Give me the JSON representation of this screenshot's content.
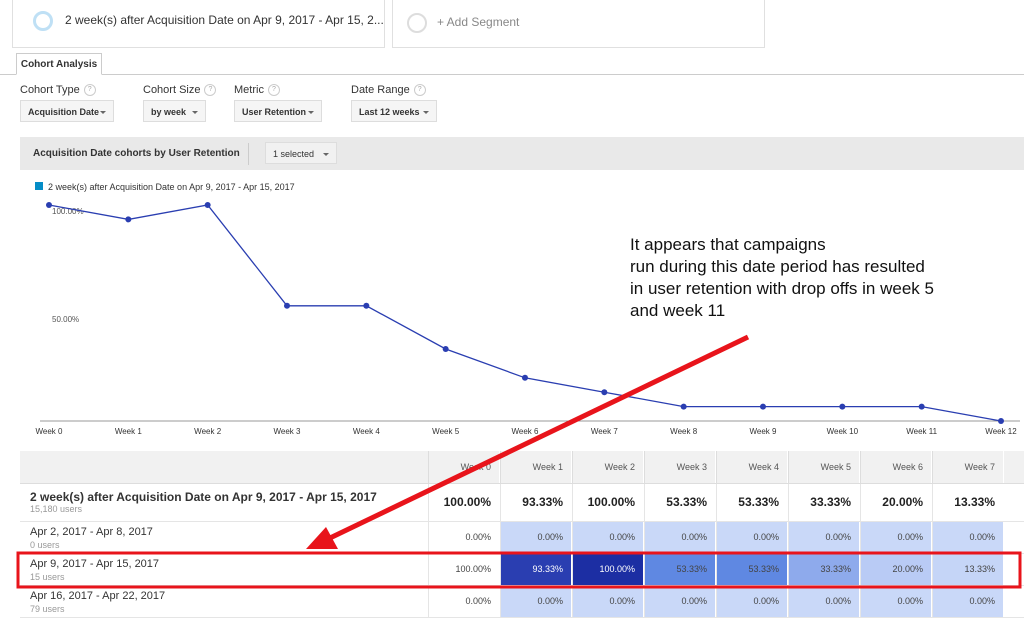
{
  "segments": {
    "active": "2 week(s) after Acquisition Date on Apr 9, 2017 - Apr 15, 2...",
    "add": "+ Add Segment"
  },
  "tab": "Cohort Analysis",
  "controls": [
    {
      "label": "Cohort Type",
      "value": "Acquisition Date"
    },
    {
      "label": "Cohort Size",
      "value": "by week"
    },
    {
      "label": "Metric",
      "value": "User Retention"
    },
    {
      "label": "Date Range",
      "value": "Last 12 weeks"
    }
  ],
  "chart_header": {
    "title": "Acquisition Date cohorts by User Retention",
    "selector": "1 selected"
  },
  "chart": {
    "type": "line",
    "series_name": "2 week(s) after Acquisition Date on Apr 9, 2017 - Apr 15, 2017",
    "color": "#2a3eb1",
    "legend_color": "#058dc7",
    "categories": [
      "Week 0",
      "Week 1",
      "Week 2",
      "Week 3",
      "Week 4",
      "Week 5",
      "Week 6",
      "Week 7",
      "Week 8",
      "Week 9",
      "Week 10",
      "Week 11",
      "Week 12"
    ],
    "values": [
      100,
      93.33,
      100,
      53.33,
      53.33,
      33.33,
      20,
      13.33,
      6.67,
      6.67,
      6.67,
      6.67,
      0
    ],
    "ylim": [
      0,
      100
    ],
    "yticks": [
      {
        "value": 100,
        "label": "100.00%"
      },
      {
        "value": 50,
        "label": "50.00%"
      }
    ]
  },
  "annotation": [
    "It appears that campaigns",
    "run during this date period has resulted",
    "in user retention with drop offs in week 5",
    "and week 11"
  ],
  "table": {
    "columns": [
      "Week 0",
      "Week 1",
      "Week 2",
      "Week 3",
      "Week 4",
      "Week 5",
      "Week 6",
      "Week 7"
    ],
    "rows": [
      {
        "label": "2 week(s) after Acquisition Date on Apr 9, 2017 - Apr 15, 2017",
        "users": "15,180 users",
        "cells": [
          "100.00%",
          "93.33%",
          "100.00%",
          "53.33%",
          "53.33%",
          "33.33%",
          "20.00%",
          "13.33%"
        ],
        "colors": [
          "#fff",
          "#fff",
          "#fff",
          "#fff",
          "#fff",
          "#fff",
          "#fff",
          "#fff"
        ]
      },
      {
        "label": "Apr 2, 2017 - Apr 8, 2017",
        "users": "0 users",
        "cells": [
          "0.00%",
          "0.00%",
          "0.00%",
          "0.00%",
          "0.00%",
          "0.00%",
          "0.00%",
          "0.00%"
        ],
        "colors": [
          "#fff",
          "#c9d8f8",
          "#c9d8f8",
          "#c9d8f8",
          "#c9d8f8",
          "#c9d8f8",
          "#c9d8f8",
          "#c9d8f8"
        ]
      },
      {
        "label": "Apr 9, 2017 - Apr 15, 2017",
        "users": "15 users",
        "cells": [
          "100.00%",
          "93.33%",
          "100.00%",
          "53.33%",
          "53.33%",
          "33.33%",
          "20.00%",
          "13.33%"
        ],
        "colors": [
          "#fff",
          "#2a3eb1",
          "#1c2ea3",
          "#5f88e2",
          "#5f88e2",
          "#8eaaec",
          "#b9cbf5",
          "#c5d5f7"
        ]
      },
      {
        "label": "Apr 16, 2017 - Apr 22, 2017",
        "users": "79 users",
        "cells": [
          "0.00%",
          "0.00%",
          "0.00%",
          "0.00%",
          "0.00%",
          "0.00%",
          "0.00%",
          "0.00%"
        ],
        "colors": [
          "#fff",
          "#c9d8f8",
          "#c9d8f8",
          "#c9d8f8",
          "#c9d8f8",
          "#c9d8f8",
          "#c9d8f8",
          "#c9d8f8"
        ]
      }
    ]
  }
}
